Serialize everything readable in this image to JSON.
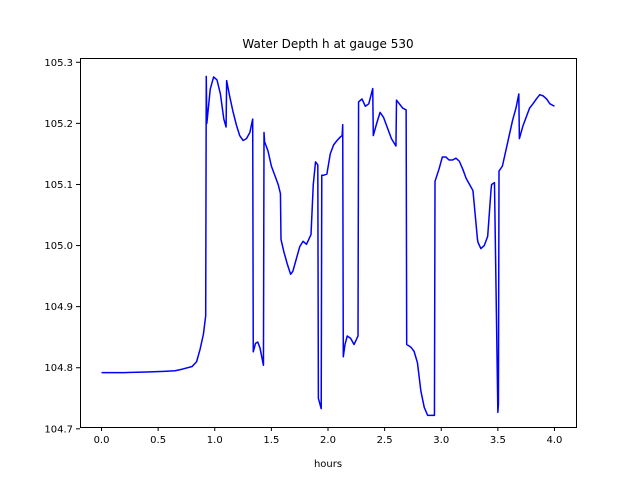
{
  "chart_data": {
    "type": "line",
    "title": "Water Depth h at gauge 530",
    "xlabel": "hours",
    "ylabel": "",
    "xlim": [
      -0.19,
      4.19
    ],
    "ylim": [
      104.703,
      105.307
    ],
    "xticks": [
      0.0,
      0.5,
      1.0,
      1.5,
      2.0,
      2.5,
      3.0,
      3.5,
      4.0
    ],
    "xtick_labels": [
      "0.0",
      "0.5",
      "1.0",
      "1.5",
      "2.0",
      "2.5",
      "3.0",
      "3.5",
      "4.0"
    ],
    "yticks": [
      104.7,
      104.8,
      104.9,
      105.0,
      105.1,
      105.2,
      105.3
    ],
    "ytick_labels": [
      "104.7",
      "104.8",
      "104.9",
      "105.0",
      "105.1",
      "105.2",
      "105.3"
    ],
    "grid": false,
    "color": "#0000ff",
    "series": [
      {
        "x": [
          0.0,
          0.2,
          0.4,
          0.55,
          0.65,
          0.72,
          0.8,
          0.84,
          0.87,
          0.9,
          0.92,
          0.925,
          0.93,
          0.96,
          0.99,
          1.02,
          1.05,
          1.08,
          1.1,
          1.105,
          1.13,
          1.16,
          1.19,
          1.22,
          1.25,
          1.28,
          1.31,
          1.335,
          1.34,
          1.36,
          1.38,
          1.4,
          1.43,
          1.435,
          1.44,
          1.47,
          1.5,
          1.53,
          1.56,
          1.58,
          1.585,
          1.61,
          1.64,
          1.67,
          1.69,
          1.72,
          1.75,
          1.78,
          1.81,
          1.85,
          1.87,
          1.89,
          1.91,
          1.915,
          1.94,
          1.945,
          1.96,
          1.99,
          2.02,
          2.05,
          2.08,
          2.11,
          2.125,
          2.13,
          2.135,
          2.15,
          2.17,
          2.2,
          2.23,
          2.265,
          2.27,
          2.3,
          2.33,
          2.36,
          2.395,
          2.4,
          2.43,
          2.46,
          2.49,
          2.52,
          2.56,
          2.6,
          2.605,
          2.63,
          2.66,
          2.69,
          2.695,
          2.73,
          2.76,
          2.79,
          2.82,
          2.85,
          2.88,
          2.91,
          2.94,
          2.945,
          2.95,
          2.98,
          3.01,
          3.04,
          3.07,
          3.1,
          3.13,
          3.16,
          3.19,
          3.22,
          3.25,
          3.28,
          3.32,
          3.325,
          3.35,
          3.38,
          3.41,
          3.44,
          3.445,
          3.47,
          3.5,
          3.505,
          3.51,
          3.54,
          3.57,
          3.6,
          3.63,
          3.66,
          3.685,
          3.69,
          3.72,
          3.75,
          3.78,
          3.81,
          3.84,
          3.87,
          3.9,
          3.93,
          3.96,
          4.0
        ],
        "y": [
          104.792,
          104.792,
          104.793,
          104.794,
          104.795,
          104.798,
          104.802,
          104.81,
          104.83,
          104.855,
          104.885,
          105.277,
          105.2,
          105.256,
          105.276,
          105.271,
          105.248,
          105.207,
          105.194,
          105.27,
          105.246,
          105.22,
          105.198,
          105.18,
          105.172,
          105.175,
          105.185,
          105.207,
          104.826,
          104.84,
          104.842,
          104.832,
          104.804,
          105.185,
          105.17,
          105.155,
          105.13,
          105.115,
          105.1,
          105.085,
          105.01,
          104.99,
          104.97,
          104.953,
          104.958,
          104.978,
          104.998,
          105.007,
          105.002,
          105.018,
          105.1,
          105.137,
          105.132,
          104.75,
          104.733,
          105.115,
          105.115,
          105.117,
          105.15,
          105.165,
          105.172,
          105.178,
          105.18,
          105.198,
          104.818,
          104.838,
          104.852,
          104.848,
          104.838,
          104.852,
          105.235,
          105.24,
          105.228,
          105.232,
          105.257,
          105.18,
          105.2,
          105.218,
          105.21,
          105.195,
          105.175,
          105.163,
          105.238,
          105.232,
          105.225,
          105.222,
          104.838,
          104.834,
          104.827,
          104.808,
          104.762,
          104.735,
          104.722,
          104.722,
          104.722,
          105.105,
          105.108,
          105.125,
          105.145,
          105.145,
          105.14,
          105.14,
          105.143,
          105.138,
          105.125,
          105.11,
          105.1,
          105.09,
          105.01,
          105.005,
          104.995,
          105.0,
          105.015,
          105.092,
          105.1,
          105.103,
          104.727,
          104.74,
          105.122,
          105.13,
          105.155,
          105.18,
          105.205,
          105.225,
          105.248,
          105.175,
          105.195,
          105.21,
          105.225,
          105.232,
          105.24,
          105.247,
          105.245,
          105.24,
          105.232,
          105.228
        ]
      }
    ]
  }
}
